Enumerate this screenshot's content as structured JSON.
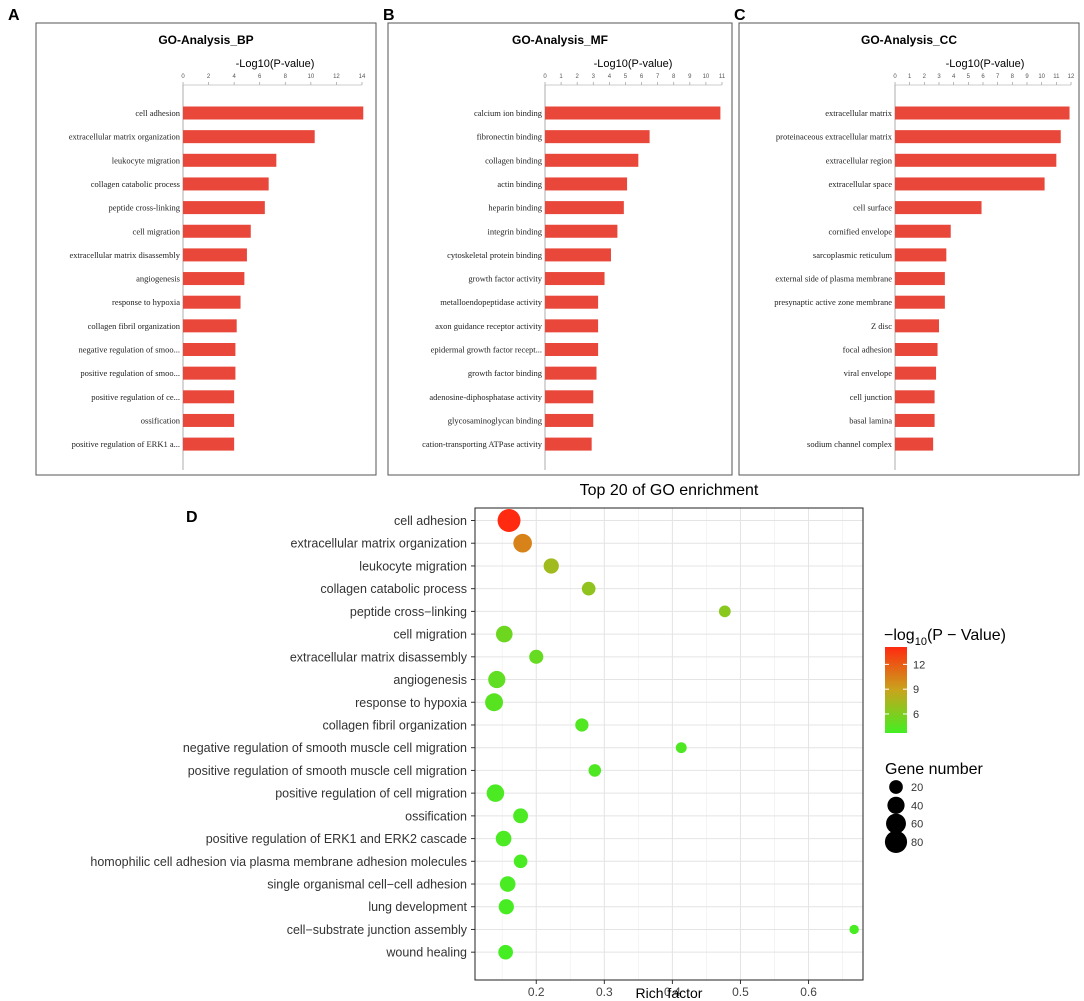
{
  "chart_data": [
    {
      "panel_letter": "A",
      "type": "bar",
      "orientation": "horizontal",
      "title": "GO-Analysis_BP",
      "xlabel": "-Log10(P-value)",
      "xlim": [
        0,
        14
      ],
      "xticks": [
        "0",
        "2",
        "4",
        "6",
        "8",
        "10",
        "12",
        "14"
      ],
      "categories": [
        "cell adhesion",
        "extracellular matrix organization",
        "leukocyte migration",
        "collagen catabolic process",
        "peptide cross-linking",
        "cell migration",
        "extracellular matrix disassembly",
        "angiogenesis",
        "response to hypoxia",
        "collagen fibril organization",
        "negative regulation of smoo...",
        "positive regulation of smoo...",
        "positive regulation of ce...",
        "ossification",
        "positive regulation of ERK1 a..."
      ],
      "values": [
        14.1,
        10.3,
        7.3,
        6.7,
        6.4,
        5.3,
        5.0,
        4.8,
        4.5,
        4.2,
        4.1,
        4.1,
        4.0,
        4.0,
        4.0
      ],
      "color": "#e8473a"
    },
    {
      "panel_letter": "B",
      "type": "bar",
      "orientation": "horizontal",
      "title": "GO-Analysis_MF",
      "xlabel": "-Log10(P-value)",
      "xlim": [
        0,
        11
      ],
      "xticks": [
        "0",
        "1",
        "2",
        "3",
        "4",
        "5",
        "6",
        "7",
        "8",
        "9",
        "10",
        "11"
      ],
      "categories": [
        "calcium ion binding",
        "fibronectin binding",
        "collagen binding",
        "actin binding",
        "heparin binding",
        "integrin binding",
        "cytoskeletal protein binding",
        "growth factor activity",
        "metalloendopeptidase activity",
        "axon guidance receptor activity",
        "epidermal growth factor recept...",
        "growth factor binding",
        "adenosine-diphosphatase activity",
        "glycosaminoglycan binding",
        "cation-transporting ATPase activity"
      ],
      "values": [
        10.9,
        6.5,
        5.8,
        5.1,
        4.9,
        4.5,
        4.1,
        3.7,
        3.3,
        3.3,
        3.3,
        3.2,
        3.0,
        3.0,
        2.9
      ],
      "color": "#e8473a"
    },
    {
      "panel_letter": "C",
      "type": "bar",
      "orientation": "horizontal",
      "title": "GO-Analysis_CC",
      "xlabel": "-Log10(P-value)",
      "xlim": [
        0,
        12
      ],
      "xticks": [
        "0",
        "1",
        "2",
        "3",
        "4",
        "5",
        "6",
        "7",
        "8",
        "9",
        "10",
        "11",
        "12"
      ],
      "categories": [
        "extracellular matrix",
        "proteinaceous extracellular matrix",
        "extracellular region",
        "extracellular space",
        "cell surface",
        "cornified envelope",
        "sarcoplasmic reticulum",
        "external side of plasma membrane",
        "presynaptic active zone membrane",
        "Z disc",
        "focal adhesion",
        "viral envelope",
        "cell junction",
        "basal lamina",
        "sodium channel complex"
      ],
      "values": [
        11.9,
        11.3,
        11.0,
        10.2,
        5.9,
        3.8,
        3.5,
        3.4,
        3.4,
        3.0,
        2.9,
        2.8,
        2.7,
        2.7,
        2.6
      ],
      "color": "#e8473a"
    },
    {
      "panel_letter": "D",
      "type": "scatter",
      "title": "Top 20 of GO enrichment",
      "xlabel": "Rich factor",
      "xlim": [
        0.11,
        0.68
      ],
      "xticks": [
        "0.2",
        "0.3",
        "0.4",
        "0.5",
        "0.6"
      ],
      "xtick_values": [
        0.2,
        0.3,
        0.4,
        0.5,
        0.6
      ],
      "categories": [
        "cell adhesion",
        "extracellular matrix organization",
        "leukocyte migration",
        "collagen catabolic process",
        "peptide cross−linking",
        "cell migration",
        "extracellular matrix disassembly",
        "angiogenesis",
        "response to hypoxia",
        "collagen fibril organization",
        "negative regulation of smooth muscle cell migration",
        "positive regulation of smooth muscle cell migration",
        "positive regulation of cell migration",
        "ossification",
        "positive regulation of ERK1 and ERK2 cascade",
        "homophilic cell adhesion via plasma membrane adhesion molecules",
        "single organismal cell−cell adhesion",
        "lung development",
        "cell−substrate junction assembly",
        "wound healing"
      ],
      "rich_factor": [
        0.16,
        0.18,
        0.222,
        0.277,
        0.477,
        0.153,
        0.2,
        0.142,
        0.138,
        0.267,
        0.413,
        0.286,
        0.14,
        0.177,
        0.152,
        0.177,
        0.158,
        0.156,
        0.667,
        0.155
      ],
      "neg_log10_p": [
        14.1,
        10.3,
        7.3,
        6.7,
        6.4,
        5.3,
        5.0,
        4.8,
        4.5,
        4.2,
        4.1,
        4.1,
        4.0,
        4.0,
        4.0,
        3.9,
        3.9,
        3.8,
        3.8,
        3.7
      ],
      "gene_number": [
        87,
        50,
        28,
        20,
        12,
        36,
        22,
        40,
        45,
        18,
        9,
        15,
        42,
        26,
        30,
        20,
        30,
        28,
        5,
        25
      ],
      "color_legend": {
        "title_prefix": "−log",
        "title_sub": "10",
        "title_suffix": "(P − Value)",
        "ticks": [
          "12",
          "9",
          "6"
        ],
        "tick_values": [
          12,
          9,
          6
        ],
        "range": [
          3.7,
          14.1
        ],
        "low_color": "#44ee22",
        "high_color": "#ff2a10"
      },
      "size_legend": {
        "title": "Gene number",
        "labels": [
          "20",
          "40",
          "60",
          "80"
        ],
        "values": [
          20,
          40,
          60,
          80
        ]
      }
    }
  ]
}
